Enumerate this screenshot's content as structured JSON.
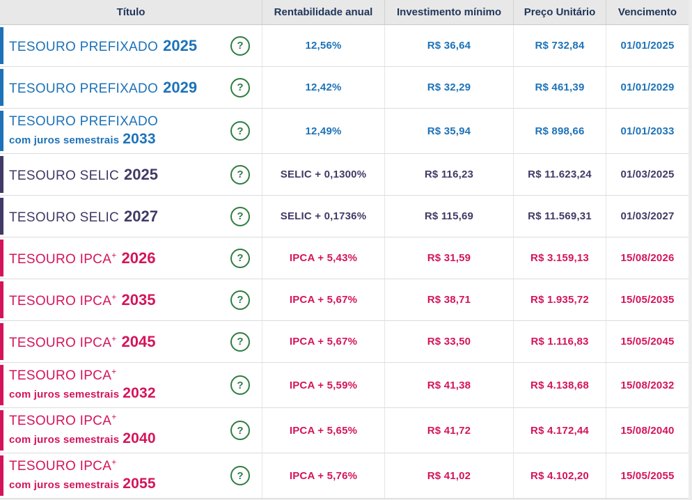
{
  "table": {
    "columns": [
      {
        "label": "Título"
      },
      {
        "label": "Rentabilidade anual"
      },
      {
        "label": "Investimento mínimo"
      },
      {
        "label": "Preço Unitário"
      },
      {
        "label": "Vencimento"
      }
    ],
    "help_icon": "?",
    "rows": [
      {
        "group": "prefixado",
        "title": "TESOURO PREFIXADO",
        "sup": "",
        "subtitle": "",
        "year": "2025",
        "rate": "12,56%",
        "min_investment": "R$ 36,64",
        "unit_price": "R$ 732,84",
        "maturity": "01/01/2025"
      },
      {
        "group": "prefixado",
        "title": "TESOURO PREFIXADO",
        "sup": "",
        "subtitle": "",
        "year": "2029",
        "rate": "12,42%",
        "min_investment": "R$ 32,29",
        "unit_price": "R$ 461,39",
        "maturity": "01/01/2029"
      },
      {
        "group": "prefixado",
        "title": "TESOURO PREFIXADO",
        "sup": "",
        "subtitle": "com juros semestrais",
        "year": "2033",
        "rate": "12,49%",
        "min_investment": "R$ 35,94",
        "unit_price": "R$ 898,66",
        "maturity": "01/01/2033"
      },
      {
        "group": "selic",
        "title": "TESOURO SELIC",
        "sup": "",
        "subtitle": "",
        "year": "2025",
        "rate": "SELIC + 0,1300%",
        "min_investment": "R$ 116,23",
        "unit_price": "R$ 11.623,24",
        "maturity": "01/03/2025"
      },
      {
        "group": "selic",
        "title": "TESOURO SELIC",
        "sup": "",
        "subtitle": "",
        "year": "2027",
        "rate": "SELIC + 0,1736%",
        "min_investment": "R$ 115,69",
        "unit_price": "R$ 11.569,31",
        "maturity": "01/03/2027"
      },
      {
        "group": "ipca",
        "title": "TESOURO IPCA",
        "sup": "+",
        "subtitle": "",
        "year": "2026",
        "rate": "IPCA + 5,43%",
        "min_investment": "R$ 31,59",
        "unit_price": "R$ 3.159,13",
        "maturity": "15/08/2026"
      },
      {
        "group": "ipca",
        "title": "TESOURO IPCA",
        "sup": "+",
        "subtitle": "",
        "year": "2035",
        "rate": "IPCA + 5,67%",
        "min_investment": "R$ 38,71",
        "unit_price": "R$ 1.935,72",
        "maturity": "15/05/2035"
      },
      {
        "group": "ipca",
        "title": "TESOURO IPCA",
        "sup": "+",
        "subtitle": "",
        "year": "2045",
        "rate": "IPCA + 5,67%",
        "min_investment": "R$ 33,50",
        "unit_price": "R$ 1.116,83",
        "maturity": "15/05/2045"
      },
      {
        "group": "ipca",
        "title": "TESOURO IPCA",
        "sup": "+",
        "subtitle": "com juros semestrais",
        "year": "2032",
        "rate": "IPCA + 5,59%",
        "min_investment": "R$ 41,38",
        "unit_price": "R$ 4.138,68",
        "maturity": "15/08/2032"
      },
      {
        "group": "ipca",
        "title": "TESOURO IPCA",
        "sup": "+",
        "subtitle": "com juros semestrais",
        "year": "2040",
        "rate": "IPCA + 5,65%",
        "min_investment": "R$ 41,72",
        "unit_price": "R$ 4.172,44",
        "maturity": "15/08/2040"
      },
      {
        "group": "ipca",
        "title": "TESOURO IPCA",
        "sup": "+",
        "subtitle": "com juros semestrais",
        "year": "2055",
        "rate": "IPCA + 5,76%",
        "min_investment": "R$ 41,02",
        "unit_price": "R$ 4.102,20",
        "maturity": "15/05/2055"
      }
    ]
  },
  "colors": {
    "prefixado": "#1d72b8",
    "selic": "#403a66",
    "ipca": "#d4145a",
    "header_text": "#21365b",
    "help_green": "#2e7d40"
  }
}
